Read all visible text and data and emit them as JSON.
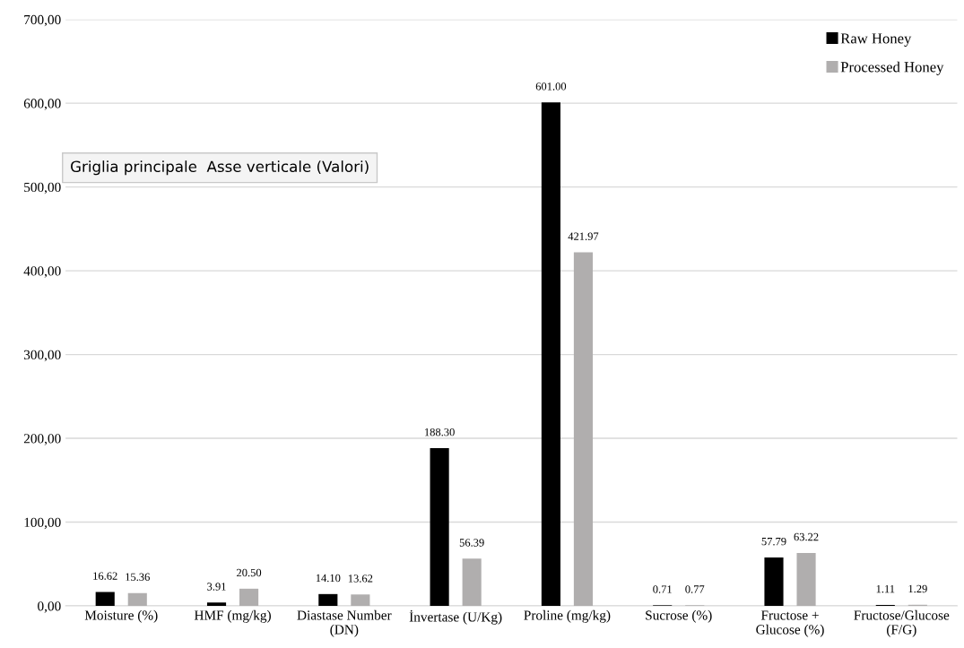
{
  "chart_data": {
    "type": "bar",
    "categories": [
      "Moisture (%)",
      "HMF (mg/kg)",
      "Diastase Number\n(DN)",
      "İnvertase (U/Kg)",
      "Proline (mg/kg)",
      "Sucrose (%)",
      "Fructose +\nGlucose (%)",
      "Fructose/Glucose\n(F/G)"
    ],
    "series": [
      {
        "name": "Raw Honey",
        "color": "#000000",
        "values": [
          16.62,
          3.91,
          14.1,
          188.3,
          601.0,
          0.71,
          57.79,
          1.11
        ],
        "value_labels": [
          "16.62",
          "3.91",
          "14.10",
          "188.30",
          "601.00",
          "0.71",
          "57.79",
          "1.11"
        ]
      },
      {
        "name": "Processed Honey",
        "color": "#b0aeae",
        "values": [
          15.36,
          20.5,
          13.62,
          56.39,
          421.97,
          0.77,
          63.22,
          1.29
        ],
        "value_labels": [
          "15.36",
          "20.50",
          "13.62",
          "56.39",
          "421.97",
          "0.77",
          "63.22",
          "1.29"
        ]
      }
    ],
    "ylim": [
      0,
      700
    ],
    "yticks": [
      {
        "value": 0,
        "label": "0,00"
      },
      {
        "value": 100,
        "label": "100,00"
      },
      {
        "value": 200,
        "label": "200,00"
      },
      {
        "value": 300,
        "label": "300,00"
      },
      {
        "value": 400,
        "label": "400,00"
      },
      {
        "value": 500,
        "label": "500,00"
      },
      {
        "value": 600,
        "label": "600,00"
      },
      {
        "value": 700,
        "label": "700,00"
      }
    ],
    "grid": "y",
    "legend": "top right",
    "annotations": [
      "Griglia principale  Asse verticale (Valori)"
    ]
  }
}
